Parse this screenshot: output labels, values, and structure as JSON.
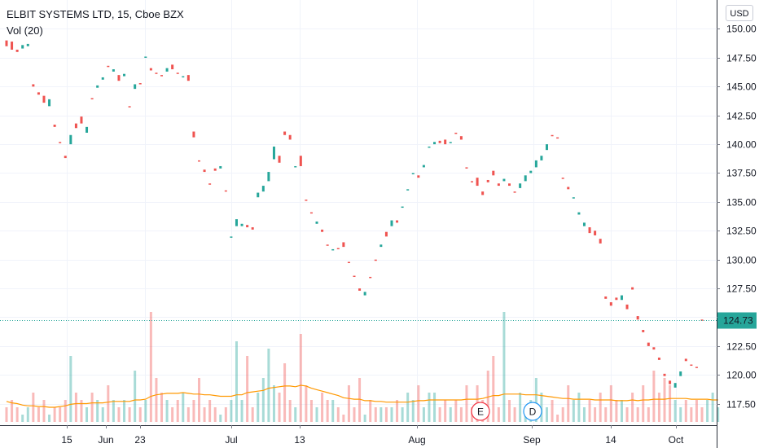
{
  "header": {
    "symbol_line": "ELBIT SYSTEMS LTD, 15, Cboe BZX",
    "indicator_label": "Vol (20)",
    "currency_button": "USD"
  },
  "events": [
    {
      "letter": "E",
      "color": "#f23645",
      "date": "Aug 26"
    },
    {
      "letter": "D",
      "color": "#2196f3",
      "date": "Sep 1"
    }
  ],
  "colors": {
    "up": "#26a69a",
    "down": "#ef5350",
    "volume_ma": "#ff9800",
    "last_price_bg": "#26a69a"
  },
  "chart_data": {
    "type": "candlestick",
    "price_axis": {
      "ticks": [
        "117.50",
        "120.00",
        "122.50",
        "125.00",
        "127.50",
        "130.00",
        "132.50",
        "135.00",
        "137.50",
        "140.00",
        "142.50",
        "145.00",
        "147.50",
        "150.00"
      ],
      "range": [
        116.7,
        150.6
      ]
    },
    "time_axis": {
      "labels": [
        "15",
        "Jun",
        "23",
        "Jul",
        "13",
        "Aug",
        "Sep",
        "14",
        "Oct"
      ]
    },
    "last_price": "124.73",
    "price_series": [
      [
        149.0,
        148.5
      ],
      [
        148.9,
        148.2
      ],
      [
        148.2,
        148.0
      ],
      [
        148.3,
        148.6
      ],
      [
        148.5,
        148.7
      ],
      [
        145.2,
        145.0
      ],
      [
        144.5,
        144.3
      ],
      [
        144.2,
        143.6
      ],
      [
        143.3,
        143.9
      ],
      [
        141.7,
        141.5
      ],
      [
        140.2,
        140.1
      ],
      [
        139.0,
        138.8
      ],
      [
        140.0,
        140.8
      ],
      [
        141.8,
        141.4
      ],
      [
        142.4,
        141.8
      ],
      [
        141.0,
        141.5
      ],
      [
        144.0,
        143.9
      ],
      [
        144.9,
        145.1
      ],
      [
        145.6,
        145.8
      ],
      [
        146.8,
        146.7
      ],
      [
        146.3,
        146.5
      ],
      [
        146.0,
        145.5
      ],
      [
        145.9,
        146.1
      ],
      [
        143.3,
        143.2
      ],
      [
        144.8,
        145.2
      ],
      [
        145.3,
        145.2
      ],
      [
        147.6,
        147.6
      ],
      [
        146.6,
        146.4
      ],
      [
        146.2,
        146.1
      ],
      [
        146.0,
        145.9
      ],
      [
        146.3,
        146.6
      ],
      [
        146.9,
        146.5
      ],
      [
        146.2,
        146.1
      ],
      [
        145.8,
        145.9
      ],
      [
        146.0,
        145.5
      ],
      [
        141.1,
        140.6
      ],
      [
        138.6,
        138.5
      ],
      [
        137.8,
        137.6
      ],
      [
        136.6,
        136.5
      ],
      [
        137.9,
        137.7
      ],
      [
        137.9,
        138.1
      ],
      [
        136.0,
        135.9
      ],
      [
        132.0,
        132.0
      ],
      [
        132.9,
        133.5
      ],
      [
        132.9,
        133.1
      ],
      [
        133.0,
        132.8
      ],
      [
        132.8,
        132.6
      ],
      [
        135.4,
        135.8
      ],
      [
        135.9,
        136.4
      ],
      [
        136.8,
        137.6
      ],
      [
        138.7,
        139.8
      ],
      [
        139.0,
        138.4
      ],
      [
        141.1,
        140.8
      ],
      [
        140.8,
        140.4
      ],
      [
        138.0,
        138.1
      ],
      [
        139.0,
        138.1
      ],
      [
        135.2,
        135.1
      ],
      [
        134.1,
        134.0
      ],
      [
        133.1,
        133.3
      ],
      [
        132.6,
        132.4
      ],
      [
        131.3,
        131.2
      ],
      [
        130.8,
        130.9
      ],
      [
        131.0,
        130.9
      ],
      [
        131.5,
        131.1
      ],
      [
        129.8,
        129.7
      ],
      [
        128.6,
        128.5
      ],
      [
        127.5,
        127.3
      ],
      [
        126.9,
        127.2
      ],
      [
        128.5,
        128.4
      ],
      [
        130.0,
        129.9
      ],
      [
        131.1,
        131.3
      ],
      [
        132.4,
        132.0
      ],
      [
        132.9,
        133.4
      ],
      [
        133.4,
        133.2
      ],
      [
        134.5,
        134.6
      ],
      [
        136.0,
        136.1
      ],
      [
        137.4,
        137.5
      ],
      [
        137.3,
        137.1
      ],
      [
        138.0,
        138.2
      ],
      [
        139.7,
        139.8
      ],
      [
        140.0,
        140.2
      ],
      [
        140.3,
        140.1
      ],
      [
        140.4,
        140.0
      ],
      [
        140.1,
        140.2
      ],
      [
        141.0,
        140.9
      ],
      [
        140.7,
        140.4
      ],
      [
        138.0,
        137.9
      ],
      [
        136.8,
        136.7
      ],
      [
        137.1,
        136.4
      ],
      [
        135.9,
        135.6
      ],
      [
        136.9,
        136.7
      ],
      [
        137.7,
        137.3
      ],
      [
        136.6,
        136.4
      ],
      [
        136.8,
        137.0
      ],
      [
        136.6,
        136.4
      ],
      [
        135.9,
        135.8
      ],
      [
        136.2,
        136.6
      ],
      [
        136.8,
        137.3
      ],
      [
        137.5,
        137.7
      ],
      [
        138.0,
        138.6
      ],
      [
        138.6,
        139.0
      ],
      [
        139.5,
        140.0
      ],
      [
        140.8,
        140.7
      ],
      [
        140.6,
        140.5
      ],
      [
        137.1,
        137.0
      ],
      [
        136.3,
        136.1
      ],
      [
        135.3,
        135.4
      ],
      [
        133.9,
        134.1
      ],
      [
        132.9,
        133.2
      ],
      [
        132.8,
        132.3
      ],
      [
        132.5,
        132.1
      ],
      [
        131.8,
        131.4
      ],
      [
        126.8,
        126.6
      ],
      [
        126.3,
        126.0
      ],
      [
        126.7,
        126.5
      ],
      [
        126.5,
        126.9
      ],
      [
        126.1,
        125.7
      ],
      [
        127.6,
        127.4
      ],
      [
        125.1,
        124.8
      ],
      [
        123.9,
        123.7
      ],
      [
        122.8,
        122.5
      ],
      [
        122.4,
        122.2
      ],
      [
        121.5,
        121.3
      ],
      [
        120.1,
        119.9
      ],
      [
        119.5,
        119.2
      ],
      [
        118.9,
        119.3
      ],
      [
        119.9,
        120.3
      ],
      [
        121.4,
        121.2
      ],
      [
        120.9,
        120.8
      ],
      [
        120.7,
        120.6
      ],
      [
        124.8,
        124.7
      ]
    ],
    "volume_series": [
      2,
      3,
      2,
      1,
      2,
      4,
      2,
      3,
      1,
      2,
      2,
      3,
      9,
      4,
      3,
      2,
      4,
      3,
      2,
      5,
      3,
      2,
      3,
      2,
      7,
      2,
      3,
      15,
      6,
      4,
      3,
      2,
      3,
      4,
      2,
      3,
      6,
      2,
      3,
      2,
      1,
      2,
      3,
      11,
      3,
      9,
      2,
      4,
      6,
      10,
      5,
      4,
      8,
      3,
      2,
      12,
      5,
      3,
      2,
      4,
      3,
      3,
      2,
      1,
      5,
      2,
      6,
      1,
      3,
      2,
      2,
      2,
      2,
      3,
      2,
      4,
      3,
      5,
      2,
      4,
      4,
      2,
      3,
      2,
      3,
      2,
      5,
      2,
      5,
      3,
      7,
      9,
      2,
      15,
      3,
      2,
      4,
      2,
      3,
      6,
      4,
      2,
      3,
      1,
      2,
      5,
      3,
      4,
      2,
      3,
      2,
      4,
      2,
      5,
      3,
      3,
      2,
      4,
      2,
      5,
      2,
      7,
      4,
      6,
      5,
      3,
      2,
      3,
      2,
      3,
      2,
      3,
      4,
      2
    ],
    "volume_ma_series": [
      2.8,
      2.6,
      2.5,
      2.3,
      2.2,
      2.2,
      2.1,
      2.1,
      2.0,
      2.0,
      2.1,
      2.2,
      2.4,
      2.5,
      2.5,
      2.5,
      2.6,
      2.6,
      2.6,
      2.7,
      2.8,
      2.8,
      2.8,
      2.8,
      3.0,
      3.0,
      3.1,
      3.5,
      3.7,
      3.8,
      3.9,
      3.9,
      3.9,
      4.0,
      3.9,
      3.8,
      3.8,
      3.7,
      3.7,
      3.6,
      3.5,
      3.5,
      3.5,
      3.7,
      3.7,
      4.0,
      4.1,
      4.2,
      4.3,
      4.6,
      4.7,
      4.8,
      4.9,
      4.9,
      4.8,
      5.0,
      4.9,
      4.6,
      4.4,
      4.2,
      4.0,
      3.8,
      3.6,
      3.3,
      3.2,
      3.1,
      3.1,
      2.9,
      2.9,
      2.8,
      2.8,
      2.7,
      2.7,
      2.7,
      2.7,
      2.7,
      2.8,
      2.9,
      2.9,
      3.0,
      3.0,
      3.0,
      3.0,
      3.0,
      3.0,
      3.0,
      3.1,
      3.1,
      3.1,
      3.2,
      3.4,
      3.6,
      3.6,
      3.8,
      3.8,
      3.8,
      3.8,
      3.7,
      3.7,
      3.7,
      3.6,
      3.5,
      3.4,
      3.3,
      3.2,
      3.2,
      3.1,
      3.1,
      3.1,
      3.1,
      3.0,
      3.0,
      3.0,
      3.0,
      2.9,
      2.9,
      2.9,
      3.0,
      2.9,
      3.0,
      3.0,
      3.1,
      3.1,
      3.1,
      3.2,
      3.2,
      3.2,
      3.2,
      3.1,
      3.1,
      3.1,
      3.1,
      3.0,
      3.0
    ]
  }
}
